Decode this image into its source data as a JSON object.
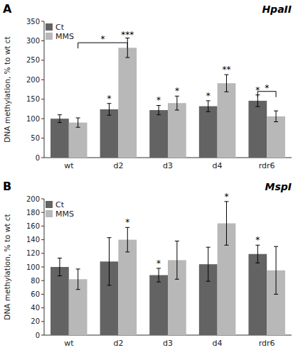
{
  "chart_data": [
    {
      "type": "bar",
      "title": "HpaII",
      "panel_label": "A",
      "categories": [
        "wt",
        "d2",
        "d3",
        "d4",
        "rdr6"
      ],
      "series": [
        {
          "name": "Ct",
          "color": "#636363",
          "values": [
            100,
            124,
            122,
            132,
            146
          ],
          "errors": [
            10,
            15,
            12,
            14,
            15
          ],
          "annotations": [
            null,
            "*",
            "*",
            "*",
            "*"
          ]
        },
        {
          "name": "MMS",
          "color": "#b8b8b8",
          "values": [
            90,
            282,
            140,
            191,
            106
          ],
          "errors": [
            12,
            25,
            18,
            22,
            14
          ],
          "annotations": [
            null,
            null,
            "*",
            "**",
            null
          ]
        }
      ],
      "ylim": [
        0,
        350
      ],
      "yticks": [
        0,
        50,
        100,
        150,
        200,
        250,
        300,
        350
      ],
      "y_label": "DNA methylation, % to wt ct",
      "grid": false,
      "legend": "upper left",
      "brackets": [
        {
          "from_category": "wt",
          "from_series": "MMS",
          "to_category": "d2",
          "to_series": "MMS",
          "y": 295,
          "label": "*"
        },
        {
          "from_category": "rdr6",
          "from_series": "Ct",
          "to_category": "rdr6",
          "to_series": "MMS",
          "y": 170,
          "label": "*"
        }
      ],
      "texts": [
        {
          "text": "***",
          "category": "d2",
          "series": "MMS",
          "y": 307
        }
      ]
    },
    {
      "type": "bar",
      "title": "MspI",
      "panel_label": "B",
      "categories": [
        "wt",
        "d2",
        "d3",
        "d4",
        "rdr6"
      ],
      "series": [
        {
          "name": "Ct",
          "color": "#636363",
          "values": [
            100,
            108,
            88,
            104,
            119
          ],
          "errors": [
            13,
            35,
            10,
            25,
            13
          ],
          "annotations": [
            null,
            null,
            "*",
            null,
            "*"
          ]
        },
        {
          "name": "MMS",
          "color": "#b8b8b8",
          "values": [
            82,
            140,
            110,
            164,
            95
          ],
          "errors": [
            15,
            18,
            28,
            32,
            35
          ],
          "annotations": [
            null,
            "*",
            null,
            "*",
            null
          ]
        }
      ],
      "ylim": [
        0,
        200
      ],
      "yticks": [
        0,
        20,
        40,
        60,
        80,
        100,
        120,
        140,
        160,
        180,
        200
      ],
      "y_label": "DNA methylation, % to wt ct",
      "grid": false,
      "legend": "upper left"
    }
  ]
}
